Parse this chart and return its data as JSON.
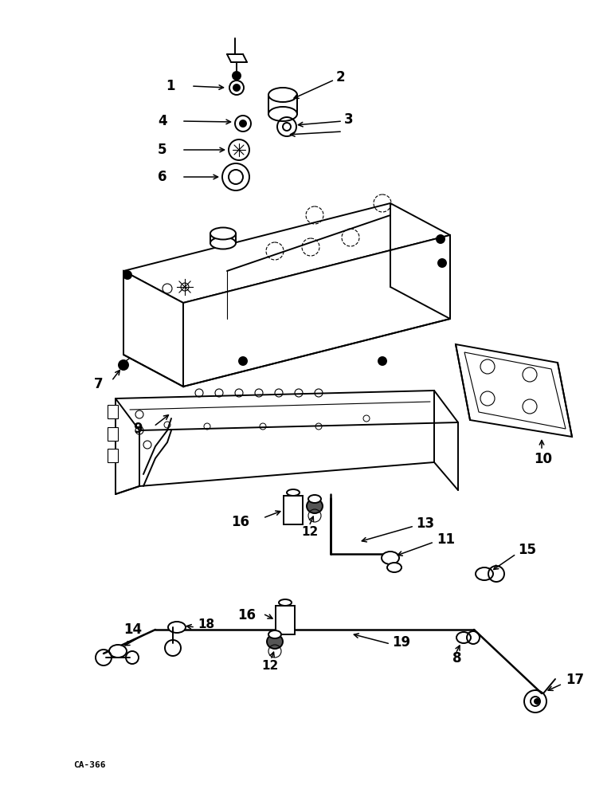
{
  "bg_color": "#ffffff",
  "lc": "#000000",
  "watermark": "CA-366"
}
